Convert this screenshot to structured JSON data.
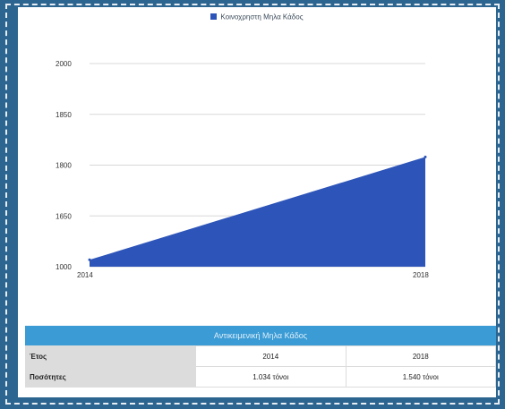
{
  "chart_data": {
    "type": "area",
    "title": "",
    "xlabel": "",
    "ylabel": "",
    "categories": [
      "2014",
      "2018"
    ],
    "series": [
      {
        "name": "Κοινοχρηστη Μηλα Κάδος",
        "values": [
          1034,
          1540
        ],
        "color": "#2d54b8"
      }
    ],
    "ylim": [
      1000,
      2000
    ],
    "yticks": [
      "2000",
      "1850",
      "1800",
      "1650",
      "1000"
    ],
    "xticks": [
      "2014",
      "2018"
    ],
    "grid": true,
    "legend": "top"
  },
  "table": {
    "title": "Αντικειμενική Μηλα Κάδος",
    "rows": [
      {
        "label": "Έτος",
        "cells": [
          "2014",
          "2018"
        ]
      },
      {
        "label": "Ποσότητες",
        "cells": [
          "1.034 τόνοι",
          "1.540 τόνοι"
        ]
      }
    ]
  }
}
